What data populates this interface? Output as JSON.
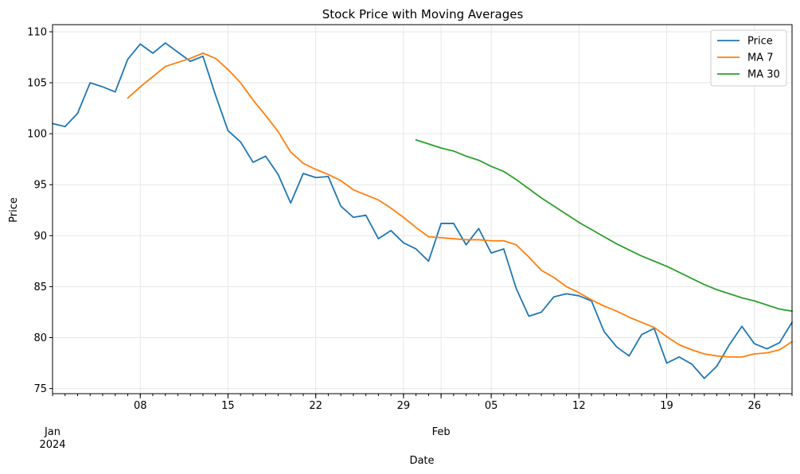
{
  "chart_data": {
    "type": "line",
    "title": "Stock Price with Moving Averages",
    "xlabel": "Date",
    "ylabel": "Price",
    "ylim": [
      74.5,
      110.7
    ],
    "yticks": [
      75,
      80,
      85,
      90,
      95,
      100,
      105,
      110
    ],
    "x_start": "2024-01-01",
    "x_end": "2024-02-29",
    "xticks": [
      {
        "day": 7,
        "label": "08"
      },
      {
        "day": 14,
        "label": "15"
      },
      {
        "day": 21,
        "label": "22"
      },
      {
        "day": 28,
        "label": "29"
      },
      {
        "day": 35,
        "label": "05"
      },
      {
        "day": 42,
        "label": "12"
      },
      {
        "day": 49,
        "label": "19"
      },
      {
        "day": 56,
        "label": "26"
      }
    ],
    "month_labels": [
      {
        "day": 0,
        "month": "Jan",
        "year": "2024"
      },
      {
        "day": 31,
        "month": "Feb",
        "year": ""
      }
    ],
    "grid": true,
    "legend_position": "top-right",
    "series": [
      {
        "name": "Price",
        "color": "#1f77b4",
        "start_day": 0,
        "values": [
          101.0,
          100.7,
          102.0,
          105.0,
          104.6,
          104.1,
          107.3,
          108.8,
          107.9,
          108.9,
          108.0,
          107.1,
          107.6,
          103.8,
          100.3,
          99.2,
          97.2,
          97.8,
          96.0,
          93.2,
          96.1,
          95.7,
          95.8,
          92.9,
          91.8,
          92.0,
          89.7,
          90.5,
          89.3,
          88.7,
          87.5,
          91.2,
          91.2,
          89.1,
          90.7,
          88.3,
          88.7,
          84.8,
          82.1,
          82.5,
          84.0,
          84.3,
          84.1,
          83.6,
          80.6,
          79.1,
          78.2,
          80.3,
          80.9,
          77.5,
          78.1,
          77.4,
          76.0,
          77.2,
          79.3,
          81.1,
          79.4,
          78.9,
          79.5,
          81.5
        ]
      },
      {
        "name": "MA 7",
        "color": "#ff7f0e",
        "start_day": 6,
        "values": [
          103.5,
          104.6,
          105.6,
          106.6,
          107.0,
          107.4,
          107.9,
          107.4,
          106.3,
          105.0,
          103.3,
          101.8,
          100.2,
          98.2,
          97.1,
          96.5,
          96.0,
          95.4,
          94.5,
          94.0,
          93.5,
          92.7,
          91.8,
          90.8,
          89.9,
          89.8,
          89.7,
          89.6,
          89.6,
          89.5,
          89.5,
          89.1,
          87.9,
          86.6,
          85.9,
          85.0,
          84.4,
          83.7,
          83.1,
          82.6,
          82.0,
          81.5,
          81.0,
          80.1,
          79.3,
          78.8,
          78.4,
          78.2,
          78.1,
          78.1,
          78.4,
          78.5,
          78.8,
          79.6
        ]
      },
      {
        "name": "MA 30",
        "color": "#2ca02c",
        "start_day": 29,
        "values": [
          99.4,
          99.0,
          98.6,
          98.3,
          97.8,
          97.4,
          96.8,
          96.3,
          95.5,
          94.6,
          93.7,
          92.9,
          92.1,
          91.3,
          90.6,
          89.9,
          89.2,
          88.6,
          88.0,
          87.5,
          87.0,
          86.4,
          85.8,
          85.2,
          84.7,
          84.3,
          83.9,
          83.6,
          83.2,
          82.8,
          82.6
        ]
      }
    ]
  }
}
